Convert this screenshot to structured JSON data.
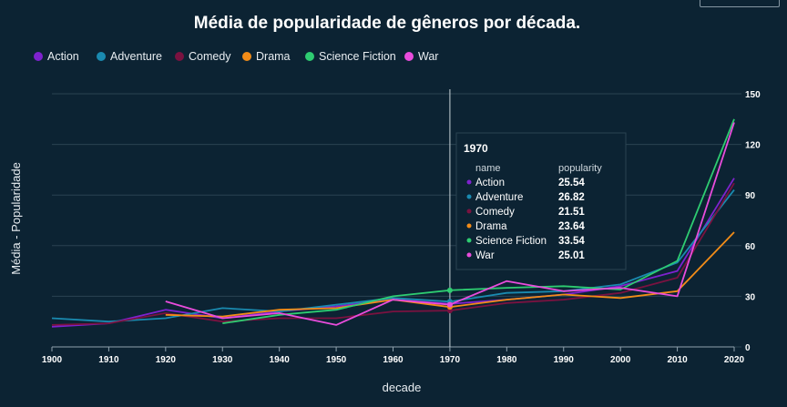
{
  "chart_data": {
    "type": "line",
    "title": "Média de popularidade de gêneros por década.",
    "xlabel": "decade",
    "ylabel": "Média - Popularidade",
    "x": [
      1900,
      1910,
      1920,
      1930,
      1940,
      1950,
      1960,
      1970,
      1980,
      1990,
      2000,
      2010,
      2020
    ],
    "xticks": [
      "1900",
      "1910",
      "1920",
      "1930",
      "1940",
      "1950",
      "1960",
      "1970",
      "1980",
      "1990",
      "2000",
      "2010",
      "2020"
    ],
    "ylim": [
      0,
      150
    ],
    "yticks": [
      0,
      30,
      60,
      90,
      120,
      150
    ],
    "y_axis_side": "right",
    "grid": true,
    "legend_position": "top-left",
    "series": [
      {
        "name": "Action",
        "color": "#7e22ce",
        "values": [
          12,
          14,
          22,
          17,
          21,
          24,
          28,
          25.54,
          28,
          31,
          36,
          45,
          100
        ]
      },
      {
        "name": "Adventure",
        "color": "#1a8ab0",
        "values": [
          17,
          15,
          17,
          23,
          21,
          25,
          29,
          26.82,
          32,
          33,
          37,
          50,
          93
        ]
      },
      {
        "name": "Comedy",
        "color": "#7a1240",
        "values": [
          13,
          14,
          20,
          15,
          17,
          17,
          21,
          21.51,
          26,
          28,
          32,
          41,
          97
        ]
      },
      {
        "name": "Drama",
        "color": "#f28c18",
        "values": [
          null,
          null,
          19,
          18,
          22,
          23,
          28,
          23.64,
          28,
          31,
          29,
          33,
          68
        ]
      },
      {
        "name": "Science Fiction",
        "color": "#2ecc71",
        "values": [
          null,
          null,
          null,
          14,
          19,
          22,
          30,
          33.54,
          35,
          36,
          34,
          51,
          135
        ]
      },
      {
        "name": "War",
        "color": "#e94cdc",
        "values": [
          null,
          null,
          27,
          17,
          20,
          13,
          28,
          25.01,
          39,
          33,
          35,
          30,
          133
        ]
      }
    ],
    "tooltip": {
      "title": "1970",
      "col_name": "name",
      "col_value": "popularity",
      "rows": [
        {
          "name": "Action",
          "value": "25.54"
        },
        {
          "name": "Adventure",
          "value": "26.82"
        },
        {
          "name": "Comedy",
          "value": "21.51"
        },
        {
          "name": "Drama",
          "value": "23.64"
        },
        {
          "name": "Science Fiction",
          "value": "33.54"
        },
        {
          "name": "War",
          "value": "25.01"
        }
      ],
      "hover_x": 1970
    }
  }
}
